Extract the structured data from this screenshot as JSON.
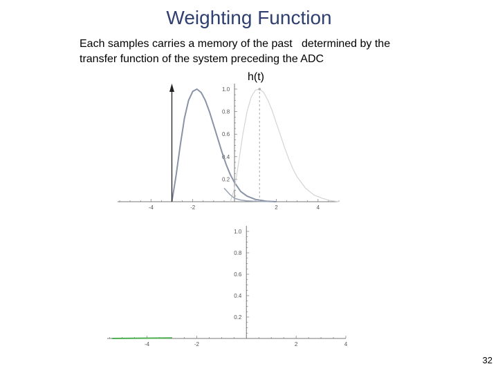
{
  "slide": {
    "title": "Weighting Function",
    "body_lines": [
      "Each samples carries a memory of the past   determined by the",
      "transfer function of the system preceding the ADC"
    ],
    "function_label": "h(t)",
    "page_number": "32"
  },
  "colors": {
    "title": "#2f3f6f",
    "main_curve": "#8893a6",
    "shifted_curve": "#d4d4d4",
    "tail_curve": "#9aa3b3",
    "arrow": "#222222",
    "green_segment": "#4caf50",
    "axis": "#777777"
  },
  "chart_data": [
    {
      "type": "line",
      "title": "",
      "xlabel": "",
      "ylabel": "",
      "xlim": [
        -5.6,
        5.0
      ],
      "ylim": [
        0,
        1.0
      ],
      "x_ticks": [
        -4,
        -2,
        2,
        4
      ],
      "y_ticks": [
        0.2,
        0.4,
        0.6,
        0.8,
        1.0
      ],
      "x_tick_labels": [
        "-4",
        "-2",
        "2",
        "4"
      ],
      "y_tick_labels": [
        "0.2",
        "0.4",
        "0.6",
        "0.8",
        "1.0"
      ],
      "grid": false,
      "series": [
        {
          "role": "main",
          "x": [
            -3.0,
            -2.8,
            -2.6,
            -2.4,
            -2.2,
            -2.0,
            -1.8,
            -1.6,
            -1.4,
            -1.2,
            -1.0,
            -0.8,
            -0.6,
            -0.4,
            -0.2,
            0.0,
            0.3,
            0.6,
            1.0,
            1.5,
            2.0
          ],
          "y": [
            0.0,
            0.23,
            0.5,
            0.74,
            0.9,
            0.98,
            1.0,
            0.97,
            0.9,
            0.8,
            0.68,
            0.56,
            0.44,
            0.33,
            0.24,
            0.17,
            0.09,
            0.05,
            0.02,
            0.005,
            0.0
          ]
        },
        {
          "role": "shifted",
          "x": [
            -0.2,
            0.0,
            0.2,
            0.4,
            0.6,
            0.8,
            1.0,
            1.2,
            1.4,
            1.6,
            1.8,
            2.0,
            2.2,
            2.4,
            2.6,
            2.8,
            3.0,
            3.4,
            3.8,
            4.2,
            4.6,
            5.0
          ],
          "y": [
            0.0,
            0.12,
            0.35,
            0.6,
            0.8,
            0.93,
            0.99,
            1.0,
            0.97,
            0.9,
            0.81,
            0.7,
            0.59,
            0.48,
            0.38,
            0.29,
            0.22,
            0.12,
            0.06,
            0.03,
            0.01,
            0.0
          ]
        },
        {
          "role": "tail",
          "x": [
            -0.5,
            -0.2,
            0.0,
            0.3,
            0.6,
            0.9,
            1.2,
            1.5,
            1.8
          ],
          "y": [
            0.12,
            0.06,
            0.03,
            0.015,
            0.008,
            0.004,
            0.002,
            0.001,
            0.0
          ]
        }
      ],
      "arrow_x": -3.0,
      "marker_x": 1.2
    },
    {
      "type": "line",
      "title": "",
      "xlabel": "",
      "ylabel": "",
      "xlim": [
        -5.6,
        4.0
      ],
      "ylim": [
        0,
        1.0
      ],
      "x_ticks": [
        -4,
        -2,
        2,
        4
      ],
      "y_ticks": [
        0.2,
        0.4,
        0.6,
        0.8,
        1.0
      ],
      "x_tick_labels": [
        "-4",
        "-2",
        "2",
        "4"
      ],
      "y_tick_labels": [
        "0.2",
        "0.4",
        "0.6",
        "0.8",
        "1.0"
      ],
      "grid": false,
      "series": [
        {
          "role": "green",
          "x": [
            -5.4,
            -3.0
          ],
          "y": [
            0.0,
            0.005
          ]
        }
      ]
    }
  ]
}
